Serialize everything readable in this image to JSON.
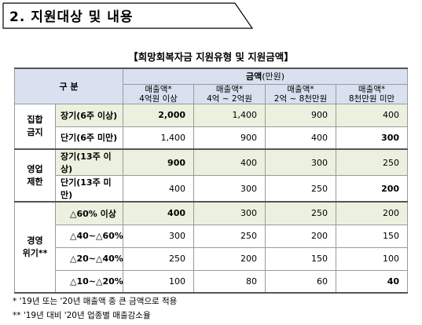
{
  "section": {
    "title": "2. 지원대상 및 내용"
  },
  "caption": "【희망회복자금 지원유형 및 지원금액】",
  "table": {
    "corner_label": "구 분",
    "amount_header": "금액",
    "amount_unit": "(만원)",
    "columns": [
      {
        "line1": "매출액*",
        "line2": "4억원 이상"
      },
      {
        "line1": "매출액*",
        "line2": "4억 ~ 2억원"
      },
      {
        "line1": "매출액*",
        "line2": "2억 ~ 8천만원"
      },
      {
        "line1": "매출액*",
        "line2": "8천만원 미만"
      }
    ],
    "groups": [
      {
        "label": "집합\n금지",
        "label_l1": "집합",
        "label_l2": "금지",
        "rows": [
          {
            "label": "장기(6주 이상)",
            "values": [
              "2,000",
              "1,400",
              "900",
              "400"
            ]
          },
          {
            "label": "단기(6주 미만)",
            "values": [
              "1,400",
              "900",
              "400",
              "300"
            ]
          }
        ]
      },
      {
        "label_l1": "영업",
        "label_l2": "제한",
        "rows": [
          {
            "label": "장기(13주 이상)",
            "values": [
              "900",
              "400",
              "300",
              "250"
            ]
          },
          {
            "label": "단기(13주 미만)",
            "values": [
              "400",
              "300",
              "250",
              "200"
            ]
          }
        ]
      },
      {
        "label_l1": "경영",
        "label_l2": "위기**",
        "rows": [
          {
            "label": "△60% 이상",
            "values": [
              "400",
              "300",
              "250",
              "200"
            ]
          },
          {
            "label": "△40~△60%",
            "values": [
              "300",
              "250",
              "200",
              "150"
            ]
          },
          {
            "label": "△20~△40%",
            "values": [
              "250",
              "200",
              "150",
              "100"
            ]
          },
          {
            "label": "△10~△20%",
            "values": [
              "100",
              "80",
              "60",
              "40"
            ]
          }
        ]
      }
    ]
  },
  "footnotes": [
    "* '19년 또는 '20년 매출액 중 큰 금액으로 적용",
    "** '19년 대비 '20년 업종별 매출감소율"
  ]
}
